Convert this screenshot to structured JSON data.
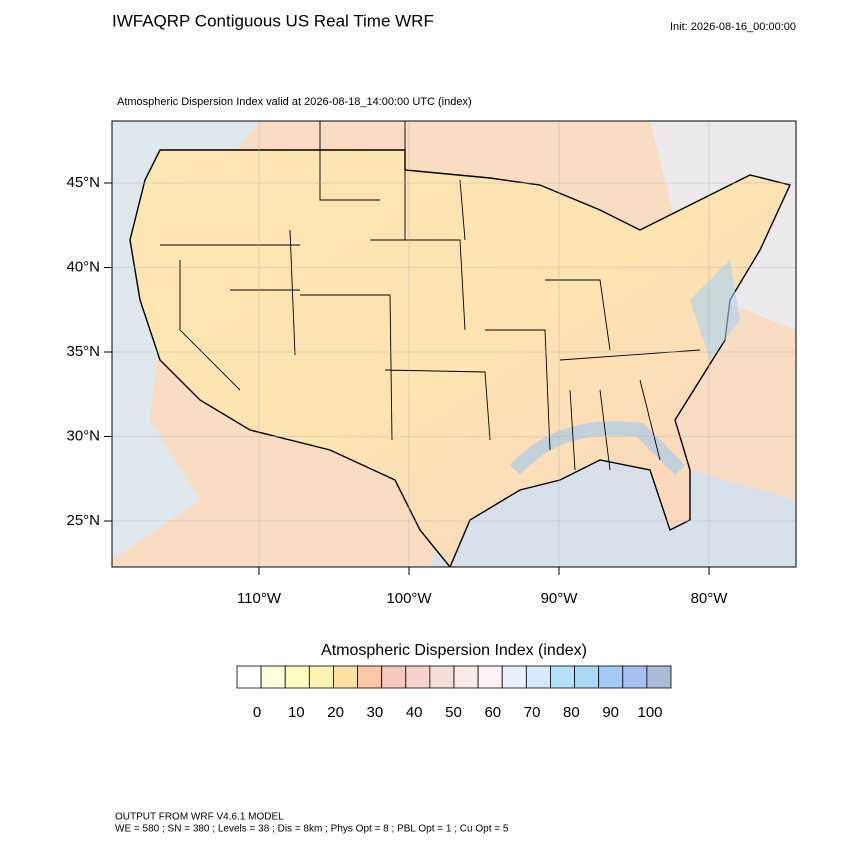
{
  "header": {
    "title": "IWFAQRP Contiguous US Real Time WRF",
    "init": "Init: 2026-08-16_00:00:00"
  },
  "map": {
    "subtitle": "Atmospheric Dispersion Index valid at 2026-08-18_14:00:00 UTC   (index)",
    "lat_ticks": [
      {
        "value": 45,
        "label": "45°N"
      },
      {
        "value": 40,
        "label": "40°N"
      },
      {
        "value": 35,
        "label": "35°N"
      },
      {
        "value": 30,
        "label": "30°N"
      },
      {
        "value": 25,
        "label": "25°N"
      }
    ],
    "lon_ticks": [
      {
        "value": -110,
        "label": "110°W"
      },
      {
        "value": -100,
        "label": "100°W"
      },
      {
        "value": -90,
        "label": "90°W"
      },
      {
        "value": -80,
        "label": "80°W"
      }
    ]
  },
  "colorbar": {
    "title": "Atmospheric Dispersion Index  (index)",
    "colors": [
      "#ffffff",
      "#ffffdc",
      "#ffffc4",
      "#fdf3b0",
      "#fde1a0",
      "#fbc8a4",
      "#f7c8c0",
      "#f5d2cc",
      "#f7ddd9",
      "#faeae8",
      "#fdf4f4",
      "#e9f1fc",
      "#d6e9fc",
      "#b3e2fa",
      "#a8d8f6",
      "#a0cbf7",
      "#a4bff2",
      "#a8bcd8"
    ],
    "ticks": [
      0,
      10,
      20,
      30,
      40,
      50,
      60,
      70,
      80,
      90,
      100
    ]
  },
  "footer": {
    "line1": "OUTPUT FROM WRF V4.6.1 MODEL",
    "line2": "WE = 580 ; SN = 380 ; Levels = 38 ; Dis = 8km ; Phys Opt = 8 ; PBL Opt = 1 ; Cu Opt = 5"
  }
}
